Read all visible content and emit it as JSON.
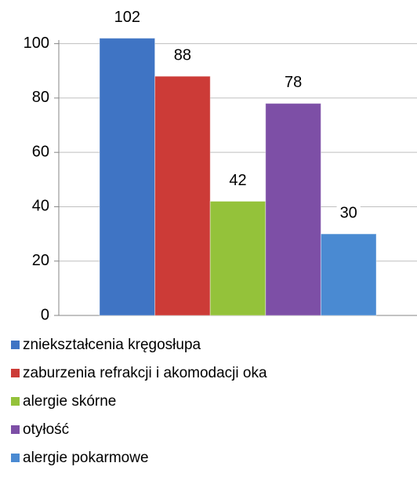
{
  "chart_data": {
    "type": "bar",
    "categories": [
      null
    ],
    "series": [
      {
        "name": "zniekształcenia kręgosłupa",
        "color": "#3f74c4",
        "values": [
          102
        ]
      },
      {
        "name": "zaburzenia refrakcji i akomodacji oka",
        "color": "#cc3b37",
        "values": [
          88
        ]
      },
      {
        "name": "alergie skórne",
        "color": "#94c23a",
        "values": [
          42
        ]
      },
      {
        "name": "otyłość",
        "color": "#7d4fa6",
        "values": [
          78
        ]
      },
      {
        "name": "alergie pokarmowe",
        "color": "#4a8ad2",
        "values": [
          30
        ]
      }
    ],
    "ylim": [
      0,
      110
    ],
    "yticks": [
      0,
      20,
      40,
      60,
      80,
      100
    ],
    "grid": true,
    "legend": "bottom"
  }
}
